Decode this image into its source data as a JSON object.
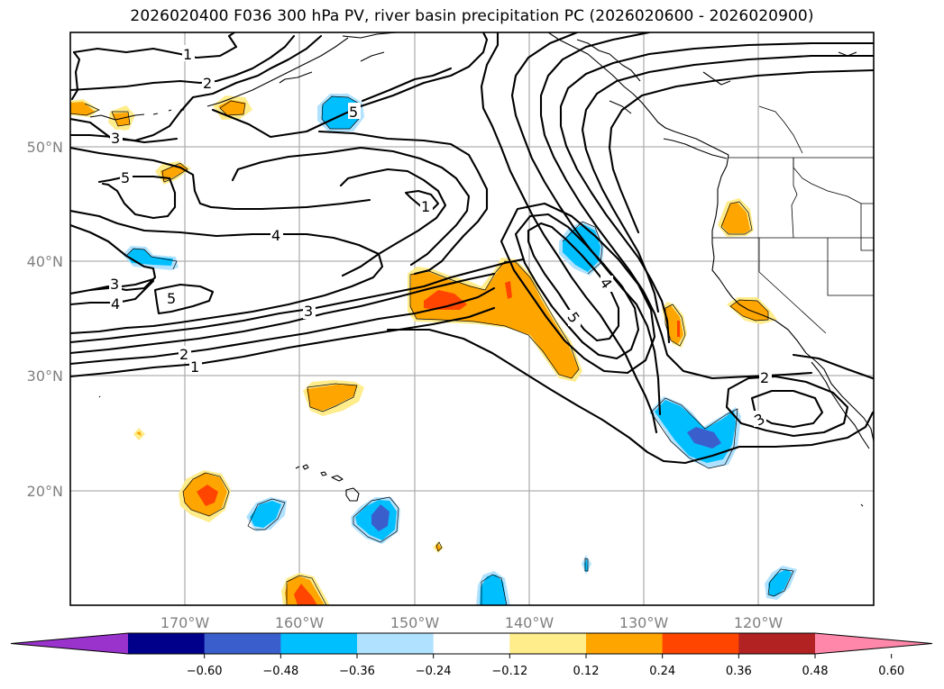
{
  "figure": {
    "title": "2026020400 F036 300 hPa PV, river basin precipitation PC (2026020600 - 2026020900)"
  },
  "map": {
    "projection": "PlateCarree",
    "lon_range": [
      "180°W",
      "110°W"
    ],
    "lat_range": [
      "10°N",
      "60°N"
    ],
    "lon_ticks": [
      "170°W",
      "160°W",
      "150°W",
      "140°W",
      "130°W",
      "120°W"
    ],
    "lat_ticks": [
      "50°N",
      "40°N",
      "30°N",
      "20°N"
    ],
    "gridlines": true,
    "contour_field": "300 hPa PV",
    "contour_labels": [
      {
        "id": "c1a",
        "text": "1"
      },
      {
        "id": "c2a",
        "text": "2"
      },
      {
        "id": "c3a",
        "text": "3"
      },
      {
        "id": "c5a",
        "text": "5"
      },
      {
        "id": "c5b",
        "text": "5"
      },
      {
        "id": "c1b",
        "text": "1"
      },
      {
        "id": "c4a",
        "text": "4"
      },
      {
        "id": "c3b",
        "text": "3"
      },
      {
        "id": "c4b",
        "text": "4"
      },
      {
        "id": "c5c",
        "text": "5"
      },
      {
        "id": "c3c",
        "text": "3"
      },
      {
        "id": "c2b",
        "text": "2"
      },
      {
        "id": "c1c",
        "text": "1"
      },
      {
        "id": "c4c",
        "text": "4"
      },
      {
        "id": "c5d",
        "text": "5"
      },
      {
        "id": "c2c",
        "text": "2"
      },
      {
        "id": "c3d",
        "text": "3"
      }
    ]
  },
  "colorbar": {
    "extend": "both",
    "bins": [
      {
        "range": "< -0.60",
        "color": "#9933cc"
      },
      {
        "range": "-0.60 to -0.48",
        "color": "#00008b"
      },
      {
        "range": "-0.48 to -0.36",
        "color": "#3a5fcd"
      },
      {
        "range": "-0.36 to -0.24",
        "color": "#00bfff"
      },
      {
        "range": "-0.24 to -0.12",
        "color": "#b0e2ff"
      },
      {
        "range": "-0.12 to 0.12",
        "color": "#ffffff"
      },
      {
        "range": "0.12 to 0.24",
        "color": "#ffec8b"
      },
      {
        "range": "0.24 to 0.36",
        "color": "#ffa500"
      },
      {
        "range": "0.36 to 0.48",
        "color": "#ff4500"
      },
      {
        "range": "0.48 to 0.60",
        "color": "#b22222"
      },
      {
        "range": "> 0.60",
        "color": "#ff88aa"
      }
    ],
    "tick_labels": [
      "−0.60",
      "−0.48",
      "−0.36",
      "−0.24",
      "−0.12",
      "0.12",
      "0.24",
      "0.36",
      "0.48",
      "0.60"
    ]
  }
}
